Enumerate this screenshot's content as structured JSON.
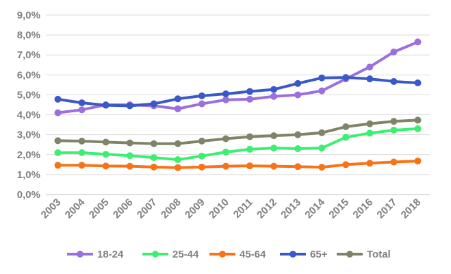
{
  "chart_data": {
    "type": "line",
    "title": "",
    "xlabel": "",
    "ylabel": "",
    "categories": [
      "2003",
      "2004",
      "2005",
      "2006",
      "2007",
      "2008",
      "2009",
      "2010",
      "2011",
      "2012",
      "2013",
      "2014",
      "2015",
      "2016",
      "2017",
      "2018"
    ],
    "y_ticks": [
      "0,0%",
      "1,0%",
      "2,0%",
      "3,0%",
      "4,0%",
      "5,0%",
      "6,0%",
      "7,0%",
      "8,0%",
      "9,0%"
    ],
    "ylim": [
      0,
      9
    ],
    "grid": true,
    "legend_position": "bottom",
    "series": [
      {
        "name": "18-24",
        "color": "#9b6fdc",
        "values": [
          4.1,
          4.25,
          4.5,
          4.5,
          4.45,
          4.3,
          4.55,
          4.75,
          4.78,
          4.92,
          5.0,
          5.2,
          5.8,
          6.4,
          7.15,
          7.65
        ]
      },
      {
        "name": "25-44",
        "color": "#3cef72",
        "values": [
          2.1,
          2.1,
          2.02,
          1.95,
          1.85,
          1.75,
          1.93,
          2.13,
          2.27,
          2.33,
          2.3,
          2.33,
          2.87,
          3.08,
          3.23,
          3.3
        ]
      },
      {
        "name": "45-64",
        "color": "#f97316",
        "values": [
          1.47,
          1.47,
          1.43,
          1.42,
          1.38,
          1.35,
          1.38,
          1.42,
          1.44,
          1.42,
          1.4,
          1.37,
          1.5,
          1.57,
          1.63,
          1.68
        ]
      },
      {
        "name": "65+",
        "color": "#3a58c8",
        "values": [
          4.78,
          4.6,
          4.48,
          4.45,
          4.55,
          4.8,
          4.95,
          5.05,
          5.17,
          5.27,
          5.57,
          5.85,
          5.87,
          5.8,
          5.67,
          5.6
        ]
      },
      {
        "name": "Total",
        "color": "#7f8468",
        "values": [
          2.7,
          2.68,
          2.63,
          2.59,
          2.55,
          2.55,
          2.68,
          2.8,
          2.9,
          2.95,
          3.0,
          3.1,
          3.4,
          3.55,
          3.67,
          3.73
        ]
      }
    ]
  }
}
